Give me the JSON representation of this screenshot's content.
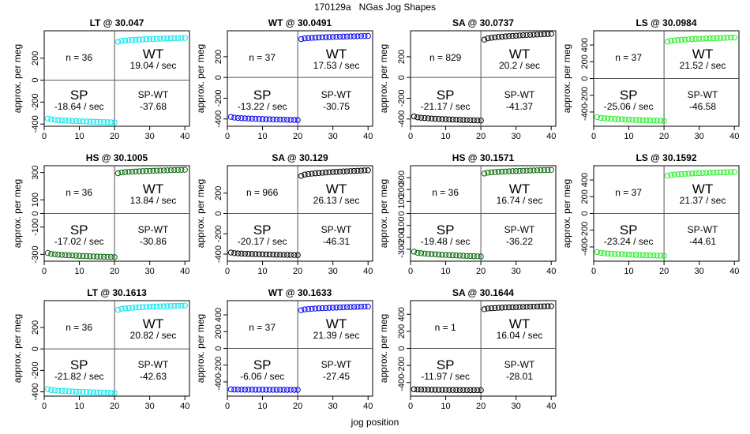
{
  "page": {
    "title": "170129a   NGas Jog Shapes",
    "xlabel": "jog position"
  },
  "colors": {
    "LT": "#00e5ee",
    "WT": "#0000ee",
    "SA": "#000000",
    "LS": "#22ee22",
    "HS": "#006400"
  },
  "chart_data": [
    {
      "type": "scatter",
      "title": "LT @ 30.047",
      "ylabel": "approx. per meg",
      "n_label": "n = 36",
      "wt_label": "WT",
      "wt_rate": "19.04 / sec",
      "sp_label": "SP",
      "sp_rate": "-18.64 / sec",
      "diff_label": "SP-WT",
      "diff_value": "-37.68",
      "color_key": "LT",
      "ylim": [
        -420,
        450
      ],
      "yticks": [
        -400,
        -200,
        0,
        200
      ],
      "xticks": [
        0,
        10,
        20,
        30,
        40
      ],
      "sp_start": -350,
      "sp_end": -385,
      "wt_start": 350,
      "wt_end": 385
    },
    {
      "type": "scatter",
      "title": "WT @ 30.0491",
      "ylabel": "approx. per meg",
      "n_label": "n = 37",
      "wt_label": "WT",
      "wt_rate": "17.53 / sec",
      "sp_label": "SP",
      "sp_rate": "-13.22 / sec",
      "diff_label": "SP-WT",
      "diff_value": "-30.75",
      "color_key": "WT",
      "ylim": [
        -470,
        450
      ],
      "yticks": [
        -400,
        -200,
        0,
        200
      ],
      "xticks": [
        0,
        10,
        20,
        30,
        40
      ],
      "sp_start": -380,
      "sp_end": -410,
      "wt_start": 370,
      "wt_end": 400
    },
    {
      "type": "scatter",
      "title": "SA @ 30.0737",
      "ylabel": "approx. per meg",
      "n_label": "n = 829",
      "wt_label": "WT",
      "wt_rate": "20.2 / sec",
      "sp_label": "SP",
      "sp_rate": "-21.17 / sec",
      "diff_label": "SP-WT",
      "diff_value": "-41.37",
      "color_key": "SA",
      "ylim": [
        -470,
        450
      ],
      "yticks": [
        -400,
        -200,
        0,
        200
      ],
      "xticks": [
        0,
        10,
        20,
        30,
        40
      ],
      "sp_start": -375,
      "sp_end": -415,
      "wt_start": 365,
      "wt_end": 420
    },
    {
      "type": "scatter",
      "title": "LS @ 30.0984",
      "ylabel": "approx. per meg",
      "n_label": "n = 37",
      "wt_label": "WT",
      "wt_rate": "21.52 / sec",
      "sp_label": "SP",
      "sp_rate": "-25.06 / sec",
      "diff_label": "SP-WT",
      "diff_value": "-46.58",
      "color_key": "LS",
      "ylim": [
        -570,
        570
      ],
      "yticks": [
        -400,
        -200,
        0,
        200,
        400
      ],
      "xticks": [
        0,
        10,
        20,
        30,
        40
      ],
      "sp_start": -460,
      "sp_end": -505,
      "wt_start": 440,
      "wt_end": 490
    },
    {
      "type": "scatter",
      "title": "HS @ 30.1005",
      "ylabel": "approx. per meg",
      "n_label": "n = 36",
      "wt_label": "WT",
      "wt_rate": "13.84 / sec",
      "sp_label": "SP",
      "sp_rate": "-17.02 / sec",
      "diff_label": "SP-WT",
      "diff_value": "-30.86",
      "color_key": "HS",
      "ylim": [
        -350,
        350
      ],
      "yticks": [
        -300,
        -100,
        0,
        100,
        300
      ],
      "yticklabels": [
        "-300",
        "-100",
        "0",
        "100",
        "300"
      ],
      "xticks": [
        0,
        10,
        20,
        30,
        40
      ],
      "sp_start": -290,
      "sp_end": -320,
      "wt_start": 295,
      "wt_end": 320
    },
    {
      "type": "scatter",
      "title": "SA @ 30.129",
      "ylabel": "approx. per meg",
      "n_label": "n = 966",
      "wt_label": "WT",
      "wt_rate": "26.13 / sec",
      "sp_label": "SP",
      "sp_rate": "-20.17 / sec",
      "diff_label": "SP-WT",
      "diff_value": "-46.31",
      "color_key": "SA",
      "ylim": [
        -470,
        470
      ],
      "yticks": [
        -400,
        -200,
        0,
        200
      ],
      "xticks": [
        0,
        10,
        20,
        30,
        40
      ],
      "sp_start": -385,
      "sp_end": -410,
      "wt_start": 370,
      "wt_end": 425
    },
    {
      "type": "scatter",
      "title": "HS @ 30.1571",
      "ylabel": "approx. per meg",
      "n_label": "n = 36",
      "wt_label": "WT",
      "wt_rate": "16.74 / sec",
      "sp_label": "SP",
      "sp_rate": "-19.48 / sec",
      "diff_label": "SP-WT",
      "diff_value": "-36.22",
      "color_key": "HS",
      "ylim": [
        -400,
        400
      ],
      "yticks": [
        -300,
        -200,
        -100,
        0,
        100,
        200,
        300
      ],
      "xticks": [
        0,
        10,
        20,
        30,
        40
      ],
      "sp_start": -320,
      "sp_end": -360,
      "wt_start": 335,
      "wt_end": 365
    },
    {
      "type": "scatter",
      "title": "LS @ 30.1592",
      "ylabel": "approx. per meg",
      "n_label": "n = 37",
      "wt_label": "WT",
      "wt_rate": "21.37 / sec",
      "sp_label": "SP",
      "sp_rate": "-23.24 / sec",
      "diff_label": "SP-WT",
      "diff_value": "-44.61",
      "color_key": "LS",
      "ylim": [
        -570,
        570
      ],
      "yticks": [
        -400,
        -200,
        0,
        200,
        400
      ],
      "xticks": [
        0,
        10,
        20,
        30,
        40
      ],
      "sp_start": -460,
      "sp_end": -505,
      "wt_start": 450,
      "wt_end": 495
    },
    {
      "type": "scatter",
      "title": "LT @ 30.1613",
      "ylabel": "approx. per meg",
      "n_label": "n = 36",
      "wt_label": "WT",
      "wt_rate": "20.82 / sec",
      "sp_label": "SP",
      "sp_rate": "-21.82 / sec",
      "diff_label": "SP-WT",
      "diff_value": "-42.63",
      "color_key": "LT",
      "ylim": [
        -440,
        450
      ],
      "yticks": [
        -400,
        -200,
        0,
        200
      ],
      "xticks": [
        0,
        10,
        20,
        30,
        40
      ],
      "sp_start": -375,
      "sp_end": -410,
      "wt_start": 365,
      "wt_end": 405
    },
    {
      "type": "scatter",
      "title": "WT @ 30.1633",
      "ylabel": "approx. per meg",
      "n_label": "n = 37",
      "wt_label": "WT",
      "wt_rate": "21.39 / sec",
      "sp_label": "SP",
      "sp_rate": "-6.06 / sec",
      "diff_label": "SP-WT",
      "diff_value": "-27.45",
      "color_key": "WT",
      "ylim": [
        -570,
        570
      ],
      "yticks": [
        -400,
        -200,
        0,
        200,
        400
      ],
      "xticks": [
        0,
        10,
        20,
        30,
        40
      ],
      "sp_start": -490,
      "sp_end": -495,
      "wt_start": 455,
      "wt_end": 500
    },
    {
      "type": "scatter",
      "title": "SA @ 30.1644",
      "ylabel": "approx. per meg",
      "n_label": "n = 1",
      "wt_label": "WT",
      "wt_rate": "16.04 / sec",
      "sp_label": "SP",
      "sp_rate": "-11.97 / sec",
      "diff_label": "SP-WT",
      "diff_value": "-28.01",
      "color_key": "SA",
      "ylim": [
        -560,
        560
      ],
      "yticks": [
        -400,
        -200,
        0,
        200,
        400
      ],
      "xticks": [
        0,
        10,
        20,
        30,
        40
      ],
      "sp_start": -480,
      "sp_end": -490,
      "wt_start": 460,
      "wt_end": 495
    }
  ]
}
